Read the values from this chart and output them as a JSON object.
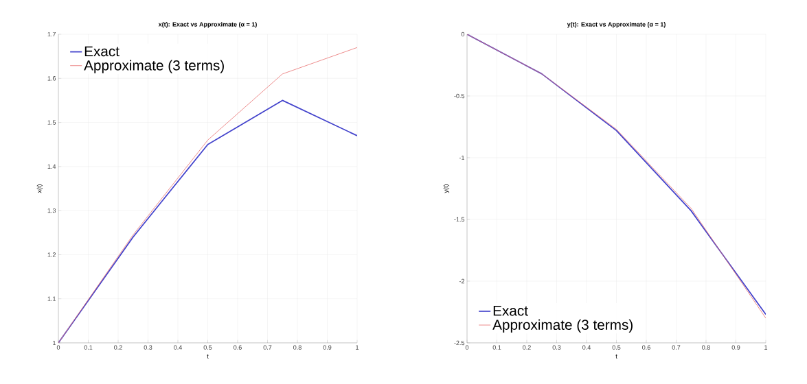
{
  "chart_data": [
    {
      "type": "line",
      "title": "x(t): Exact vs Approximate (α = 1)",
      "xlabel": "t",
      "ylabel": "x(t)",
      "x": [
        0,
        0.25,
        0.5,
        0.75,
        1
      ],
      "series": [
        {
          "name": "Exact",
          "color": "#4444cc",
          "values": [
            1,
            1.24,
            1.45,
            1.55,
            1.47
          ]
        },
        {
          "name": "Approximate (3 terms)",
          "color": "#e87070",
          "values": [
            1,
            1.245,
            1.46,
            1.61,
            1.67
          ]
        }
      ],
      "xlim": [
        0,
        1
      ],
      "xticks": [
        0,
        0.1,
        0.2,
        0.3,
        0.4,
        0.5,
        0.6,
        0.7,
        0.8,
        0.9,
        1
      ],
      "ylim": [
        1,
        1.7
      ],
      "yticks": [
        1,
        1.1,
        1.2,
        1.3,
        1.4,
        1.5,
        1.6,
        1.7
      ],
      "grid": true,
      "legend": "top left"
    },
    {
      "type": "line",
      "title": "y(t): Exact vs Approximate (α = 1)",
      "xlabel": "t",
      "ylabel": "y(t)",
      "x": [
        0,
        0.25,
        0.5,
        0.75,
        1
      ],
      "series": [
        {
          "name": "Exact",
          "color": "#4444cc",
          "values": [
            0,
            -0.32,
            -0.78,
            -1.43,
            -2.27
          ]
        },
        {
          "name": "Approximate (3 terms)",
          "color": "#e87070",
          "values": [
            0,
            -0.32,
            -0.77,
            -1.41,
            -2.3
          ]
        }
      ],
      "xlim": [
        0,
        1
      ],
      "xticks": [
        0,
        0.1,
        0.2,
        0.3,
        0.4,
        0.5,
        0.6,
        0.7,
        0.8,
        0.9,
        1
      ],
      "ylim": [
        -2.5,
        0
      ],
      "yticks": [
        -2.5,
        -2,
        -1.5,
        -1,
        -0.5,
        0
      ],
      "grid": true,
      "legend": "bottom left"
    }
  ]
}
